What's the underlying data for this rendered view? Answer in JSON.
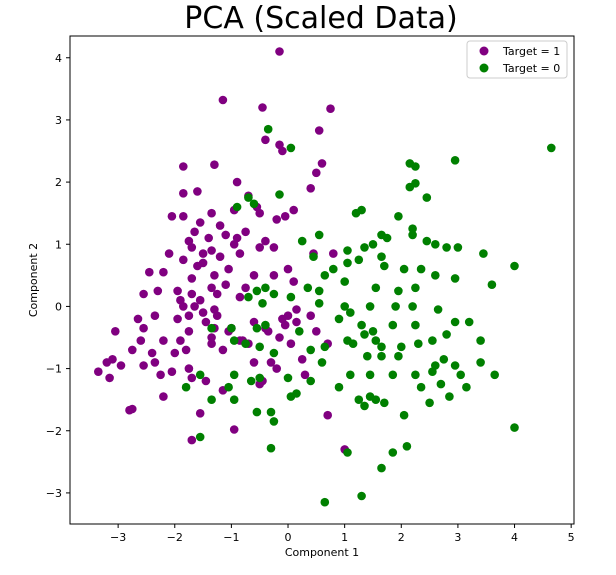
{
  "chart_data": {
    "type": "scatter",
    "title": "PCA (Scaled Data)",
    "xlabel": "Component 1",
    "ylabel": "Component 2",
    "xlim": [
      -3.85,
      5.05
    ],
    "ylim": [
      -3.5,
      4.35
    ],
    "xticks": [
      -3,
      -2,
      -1,
      0,
      1,
      2,
      3,
      4,
      5
    ],
    "yticks": [
      -3,
      -2,
      -1,
      0,
      1,
      2,
      3,
      4
    ],
    "xtick_labels": [
      "−3",
      "−2",
      "−1",
      "0",
      "1",
      "2",
      "3",
      "4",
      "5"
    ],
    "ytick_labels": [
      "−3",
      "−2",
      "−1",
      "0",
      "1",
      "2",
      "3",
      "4"
    ],
    "grid": false,
    "legend_position": "top-right",
    "series": [
      {
        "name": "Target = 1",
        "color": "#800080",
        "points": [
          [
            -0.15,
            4.1
          ],
          [
            -1.15,
            3.32
          ],
          [
            -0.45,
            3.2
          ],
          [
            0.75,
            3.18
          ],
          [
            0.55,
            2.83
          ],
          [
            -0.4,
            2.68
          ],
          [
            -0.15,
            2.6
          ],
          [
            -0.1,
            2.5
          ],
          [
            0.6,
            2.3
          ],
          [
            0.5,
            2.15
          ],
          [
            -1.85,
            2.25
          ],
          [
            -1.3,
            2.28
          ],
          [
            -0.9,
            2.0
          ],
          [
            -0.4,
            1.05
          ],
          [
            0.4,
            1.9
          ],
          [
            -1.85,
            1.82
          ],
          [
            -1.6,
            1.85
          ],
          [
            -0.7,
            1.78
          ],
          [
            -0.95,
            1.55
          ],
          [
            -0.55,
            1.6
          ],
          [
            -0.5,
            1.5
          ],
          [
            0.1,
            1.55
          ],
          [
            -1.35,
            1.5
          ],
          [
            -2.05,
            1.45
          ],
          [
            -1.85,
            1.45
          ],
          [
            -0.2,
            1.4
          ],
          [
            -0.05,
            1.45
          ],
          [
            -1.55,
            1.35
          ],
          [
            -1.2,
            1.3
          ],
          [
            -1.65,
            1.2
          ],
          [
            -1.1,
            1.15
          ],
          [
            -0.9,
            1.1
          ],
          [
            -0.75,
            1.2
          ],
          [
            -1.4,
            1.1
          ],
          [
            -1.75,
            1.05
          ],
          [
            -1.7,
            0.95
          ],
          [
            -0.95,
            1.0
          ],
          [
            -1.35,
            0.9
          ],
          [
            -1.5,
            0.85
          ],
          [
            -2.1,
            0.85
          ],
          [
            -1.2,
            0.8
          ],
          [
            -0.85,
            0.85
          ],
          [
            -1.5,
            0.7
          ],
          [
            -1.85,
            0.75
          ],
          [
            -1.6,
            0.65
          ],
          [
            -1.05,
            0.6
          ],
          [
            -2.2,
            0.55
          ],
          [
            -2.45,
            0.55
          ],
          [
            -1.3,
            0.5
          ],
          [
            -0.6,
            0.5
          ],
          [
            -1.7,
            0.45
          ],
          [
            -0.25,
            0.5
          ],
          [
            0.0,
            0.6
          ],
          [
            -1.1,
            0.35
          ],
          [
            -1.35,
            0.3
          ],
          [
            -1.95,
            0.25
          ],
          [
            -2.3,
            0.25
          ],
          [
            -2.55,
            0.2
          ],
          [
            -1.7,
            0.2
          ],
          [
            -1.25,
            0.2
          ],
          [
            -0.85,
            0.15
          ],
          [
            -1.55,
            0.1
          ],
          [
            -1.9,
            0.1
          ],
          [
            -1.85,
            0.0
          ],
          [
            -1.65,
            0.0
          ],
          [
            -1.3,
            -0.05
          ],
          [
            -1.5,
            -0.1
          ],
          [
            -1.25,
            -0.15
          ],
          [
            -1.95,
            -0.2
          ],
          [
            -1.75,
            -0.15
          ],
          [
            -2.35,
            -0.15
          ],
          [
            -2.65,
            -0.2
          ],
          [
            -1.45,
            -0.25
          ],
          [
            -1.0,
            -0.35
          ],
          [
            -1.75,
            -0.4
          ],
          [
            -2.55,
            -0.35
          ],
          [
            -3.05,
            -0.4
          ],
          [
            -1.3,
            -0.35
          ],
          [
            -0.4,
            -0.35
          ],
          [
            -0.1,
            -0.2
          ],
          [
            0.15,
            -0.25
          ],
          [
            0.5,
            -0.4
          ],
          [
            -0.15,
            -0.5
          ],
          [
            -0.85,
            -0.55
          ],
          [
            -1.35,
            -0.5
          ],
          [
            -1.9,
            -0.55
          ],
          [
            -2.2,
            -0.55
          ],
          [
            -2.6,
            -0.55
          ],
          [
            -2.75,
            -0.7
          ],
          [
            -2.4,
            -0.75
          ],
          [
            -2.0,
            -0.75
          ],
          [
            -1.8,
            -0.7
          ],
          [
            -1.35,
            -0.6
          ],
          [
            -1.15,
            -0.7
          ],
          [
            -0.7,
            -0.6
          ],
          [
            0.05,
            -0.6
          ],
          [
            -2.35,
            -0.9
          ],
          [
            -2.95,
            -0.95
          ],
          [
            -3.2,
            -0.9
          ],
          [
            -3.1,
            -0.85
          ],
          [
            -3.35,
            -1.05
          ],
          [
            -3.15,
            -1.15
          ],
          [
            -2.25,
            -1.1
          ],
          [
            -2.55,
            -0.95
          ],
          [
            -2.05,
            -1.05
          ],
          [
            -1.75,
            -1.0
          ],
          [
            -1.7,
            -1.15
          ],
          [
            -1.45,
            -1.2
          ],
          [
            -1.15,
            -1.35
          ],
          [
            -2.2,
            -1.45
          ],
          [
            -2.8,
            -1.67
          ],
          [
            -2.75,
            -1.65
          ],
          [
            -1.55,
            -1.72
          ],
          [
            -1.7,
            -2.15
          ],
          [
            -0.95,
            -1.98
          ],
          [
            0.7,
            -1.75
          ],
          [
            1.0,
            -2.3
          ],
          [
            0.3,
            -1.1
          ],
          [
            -0.2,
            -1.0
          ],
          [
            0.25,
            -0.85
          ],
          [
            -0.45,
            -1.2
          ],
          [
            0.15,
            -0.05
          ],
          [
            0.8,
            0.85
          ],
          [
            0.45,
            0.85
          ],
          [
            0.1,
            0.4
          ],
          [
            -0.25,
            0.95
          ],
          [
            -0.75,
            0.3
          ],
          [
            0.4,
            -0.15
          ],
          [
            0.0,
            -0.15
          ],
          [
            -0.3,
            -0.9
          ],
          [
            -0.05,
            -0.3
          ],
          [
            -0.6,
            -0.25
          ],
          [
            -0.6,
            -0.9
          ],
          [
            -0.35,
            -0.4
          ],
          [
            -1.05,
            -0.4
          ],
          [
            -0.8,
            -0.55
          ],
          [
            -0.5,
            0.95
          ],
          [
            -0.5,
            -1.25
          ],
          [
            0.7,
            -0.6
          ]
        ]
      },
      {
        "name": "Target = 0",
        "color": "#008000",
        "points": [
          [
            4.65,
            2.55
          ],
          [
            2.95,
            2.35
          ],
          [
            2.15,
            2.3
          ],
          [
            2.25,
            2.25
          ],
          [
            2.25,
            1.98
          ],
          [
            2.15,
            1.92
          ],
          [
            2.45,
            1.75
          ],
          [
            0.05,
            2.55
          ],
          [
            -0.35,
            2.85
          ],
          [
            -0.15,
            1.8
          ],
          [
            -0.7,
            1.75
          ],
          [
            -0.6,
            1.65
          ],
          [
            -0.9,
            1.6
          ],
          [
            1.3,
            1.55
          ],
          [
            1.2,
            1.5
          ],
          [
            1.95,
            1.45
          ],
          [
            2.2,
            1.25
          ],
          [
            2.2,
            1.15
          ],
          [
            2.45,
            1.05
          ],
          [
            1.65,
            1.15
          ],
          [
            1.75,
            1.1
          ],
          [
            1.5,
            1.0
          ],
          [
            2.6,
            1.0
          ],
          [
            2.8,
            0.95
          ],
          [
            3.0,
            0.95
          ],
          [
            1.35,
            0.95
          ],
          [
            1.05,
            0.9
          ],
          [
            0.55,
            1.15
          ],
          [
            0.25,
            1.05
          ],
          [
            0.45,
            0.8
          ],
          [
            0.8,
            0.6
          ],
          [
            1.05,
            0.7
          ],
          [
            1.25,
            0.75
          ],
          [
            1.65,
            0.8
          ],
          [
            1.7,
            0.65
          ],
          [
            2.05,
            0.6
          ],
          [
            2.35,
            0.6
          ],
          [
            2.6,
            0.5
          ],
          [
            2.95,
            0.45
          ],
          [
            3.45,
            0.85
          ],
          [
            4.0,
            0.65
          ],
          [
            3.6,
            0.35
          ],
          [
            2.25,
            0.3
          ],
          [
            1.95,
            0.25
          ],
          [
            1.55,
            0.3
          ],
          [
            1.0,
            0.4
          ],
          [
            0.65,
            0.5
          ],
          [
            0.55,
            0.25
          ],
          [
            0.35,
            0.3
          ],
          [
            0.05,
            0.15
          ],
          [
            -0.25,
            0.2
          ],
          [
            -0.4,
            0.3
          ],
          [
            -0.55,
            0.25
          ],
          [
            -0.7,
            0.15
          ],
          [
            -0.45,
            0.05
          ],
          [
            0.55,
            0.05
          ],
          [
            1.0,
            0.0
          ],
          [
            1.45,
            0.0
          ],
          [
            1.9,
            0.0
          ],
          [
            2.2,
            0.0
          ],
          [
            2.65,
            -0.05
          ],
          [
            1.1,
            -0.1
          ],
          [
            0.9,
            -0.2
          ],
          [
            1.3,
            -0.3
          ],
          [
            1.85,
            -0.3
          ],
          [
            2.25,
            -0.3
          ],
          [
            2.95,
            -0.25
          ],
          [
            3.2,
            -0.25
          ],
          [
            1.5,
            -0.4
          ],
          [
            1.35,
            -0.45
          ],
          [
            1.05,
            -0.55
          ],
          [
            1.15,
            -0.6
          ],
          [
            1.55,
            -0.55
          ],
          [
            1.65,
            -0.65
          ],
          [
            2.0,
            -0.65
          ],
          [
            2.3,
            -0.6
          ],
          [
            2.55,
            -0.55
          ],
          [
            2.8,
            -0.45
          ],
          [
            3.4,
            -0.55
          ],
          [
            0.65,
            -0.65
          ],
          [
            0.4,
            -0.7
          ],
          [
            -0.25,
            -0.75
          ],
          [
            -0.5,
            -0.65
          ],
          [
            -0.95,
            -0.55
          ],
          [
            -0.75,
            -0.6
          ],
          [
            -1.0,
            -0.35
          ],
          [
            -1.35,
            -0.35
          ],
          [
            -0.55,
            -0.35
          ],
          [
            -0.4,
            -0.3
          ],
          [
            0.2,
            -0.4
          ],
          [
            1.4,
            -0.8
          ],
          [
            1.65,
            -0.8
          ],
          [
            1.95,
            -0.8
          ],
          [
            2.75,
            -0.85
          ],
          [
            2.95,
            -0.95
          ],
          [
            2.6,
            -0.95
          ],
          [
            3.4,
            -0.9
          ],
          [
            3.05,
            -1.1
          ],
          [
            2.55,
            -1.05
          ],
          [
            2.25,
            -1.1
          ],
          [
            1.85,
            -1.1
          ],
          [
            1.45,
            -1.1
          ],
          [
            1.1,
            -1.1
          ],
          [
            0.6,
            -0.9
          ],
          [
            0.4,
            -1.2
          ],
          [
            0.0,
            -1.15
          ],
          [
            -0.5,
            -1.15
          ],
          [
            -0.65,
            -1.2
          ],
          [
            -0.95,
            -1.1
          ],
          [
            -1.05,
            -1.3
          ],
          [
            -1.55,
            -1.1
          ],
          [
            -1.8,
            -1.3
          ],
          [
            -1.35,
            -1.5
          ],
          [
            -0.95,
            -1.5
          ],
          [
            -0.55,
            -1.7
          ],
          [
            -0.3,
            -1.7
          ],
          [
            -0.25,
            -1.85
          ],
          [
            0.05,
            -1.45
          ],
          [
            0.15,
            -1.4
          ],
          [
            0.9,
            -1.3
          ],
          [
            1.25,
            -1.5
          ],
          [
            1.45,
            -1.45
          ],
          [
            1.55,
            -1.5
          ],
          [
            1.35,
            -1.6
          ],
          [
            1.7,
            -1.55
          ],
          [
            2.05,
            -1.75
          ],
          [
            2.35,
            -1.3
          ],
          [
            2.7,
            -1.25
          ],
          [
            2.5,
            -1.55
          ],
          [
            2.85,
            -1.45
          ],
          [
            3.15,
            -1.3
          ],
          [
            3.65,
            -1.1
          ],
          [
            4.0,
            -1.95
          ],
          [
            1.05,
            -2.35
          ],
          [
            1.85,
            -2.35
          ],
          [
            2.1,
            -2.25
          ],
          [
            1.65,
            -2.6
          ],
          [
            1.3,
            -3.05
          ],
          [
            0.65,
            -3.15
          ],
          [
            -0.3,
            -2.28
          ],
          [
            -1.55,
            -2.1
          ]
        ]
      }
    ]
  }
}
